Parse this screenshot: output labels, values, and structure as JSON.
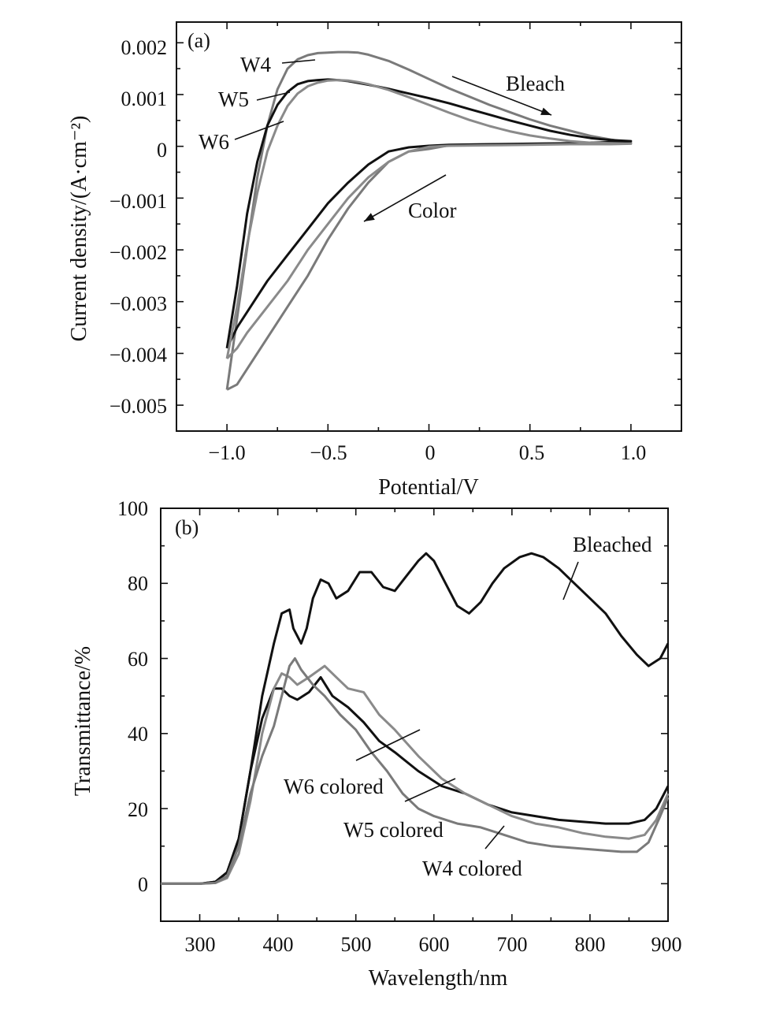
{
  "chart_data": [
    {
      "type": "line",
      "panel_label": "(a)",
      "xlabel": "Potential/V",
      "ylabel": "Current density/(A·cm⁻²)",
      "xlim": [
        -1.25,
        1.25
      ],
      "ylim": [
        -0.0055,
        0.0024
      ],
      "xticks": [
        -1.0,
        -0.5,
        0,
        0.5,
        1.0
      ],
      "xtick_labels": [
        "−1.0",
        "−0.5",
        "0",
        "0.5",
        "1.0"
      ],
      "yticks": [
        0.002,
        0.001,
        0,
        -0.001,
        -0.002,
        -0.003,
        -0.004,
        -0.005
      ],
      "ytick_labels": [
        "0.002",
        "0.001",
        "0",
        "−0.001",
        "−0.002",
        "−0.003",
        "−0.004",
        "−0.005"
      ],
      "series": [
        {
          "name": "W4",
          "color": "#7a7a7a",
          "x": [
            -1.0,
            -0.92,
            -0.85,
            -0.8,
            -0.75,
            -0.7,
            -0.65,
            -0.6,
            -0.55,
            -0.5,
            -0.45,
            -0.4,
            -0.35,
            -0.3,
            -0.2,
            -0.1,
            0.0,
            0.1,
            0.2,
            0.3,
            0.4,
            0.5,
            0.6,
            0.7,
            0.8,
            0.9,
            1.0,
            0.9,
            0.7,
            0.5,
            0.3,
            0.1,
            0.0,
            -0.1,
            -0.2,
            -0.3,
            -0.4,
            -0.5,
            -0.6,
            -0.7,
            -0.8,
            -0.9,
            -0.95,
            -1.0
          ],
          "y": [
            -0.0047,
            -0.0025,
            -0.0006,
            0.0004,
            0.0011,
            0.0015,
            0.00168,
            0.00176,
            0.0018,
            0.00181,
            0.00182,
            0.00182,
            0.00181,
            0.00177,
            0.00165,
            0.00148,
            0.0013,
            0.00112,
            0.00096,
            0.0008,
            0.00066,
            0.00052,
            0.0004,
            0.0003,
            0.0002,
            0.00013,
            7e-05,
            5e-05,
            4e-05,
            4e-05,
            3e-05,
            2e-05,
            -5e-05,
            -0.0001,
            -0.0003,
            -0.0007,
            -0.0012,
            -0.0018,
            -0.0025,
            -0.0031,
            -0.0037,
            -0.0043,
            -0.0046,
            -0.0047
          ]
        },
        {
          "name": "W5",
          "color": "#111111",
          "x": [
            -1.0,
            -0.95,
            -0.9,
            -0.85,
            -0.8,
            -0.75,
            -0.7,
            -0.65,
            -0.6,
            -0.55,
            -0.5,
            -0.45,
            -0.4,
            -0.3,
            -0.2,
            -0.1,
            0.0,
            0.1,
            0.2,
            0.3,
            0.4,
            0.5,
            0.6,
            0.7,
            0.8,
            0.9,
            1.0,
            0.9,
            0.7,
            0.5,
            0.3,
            0.1,
            0.0,
            -0.1,
            -0.2,
            -0.3,
            -0.4,
            -0.5,
            -0.6,
            -0.7,
            -0.8,
            -0.9,
            -0.95,
            -1.0
          ],
          "y": [
            -0.0039,
            -0.0027,
            -0.0013,
            -0.0003,
            0.0004,
            0.0008,
            0.00105,
            0.0012,
            0.00126,
            0.00128,
            0.00129,
            0.00128,
            0.00126,
            0.00119,
            0.00111,
            0.00102,
            0.00093,
            0.00083,
            0.00072,
            0.00061,
            0.0005,
            0.0004,
            0.0003,
            0.00022,
            0.00016,
            0.00012,
            0.0001,
            8e-05,
            6e-05,
            5e-05,
            4e-05,
            3e-05,
            1e-05,
            -2e-05,
            -0.0001,
            -0.00035,
            -0.0007,
            -0.0011,
            -0.0016,
            -0.0021,
            -0.0026,
            -0.0032,
            -0.0035,
            -0.0039
          ]
        },
        {
          "name": "W6",
          "color": "#8a8a8a",
          "x": [
            -1.0,
            -0.95,
            -0.9,
            -0.85,
            -0.8,
            -0.75,
            -0.7,
            -0.65,
            -0.6,
            -0.55,
            -0.5,
            -0.45,
            -0.4,
            -0.35,
            -0.3,
            -0.2,
            -0.1,
            0.0,
            0.1,
            0.2,
            0.3,
            0.4,
            0.5,
            0.6,
            0.7,
            0.8,
            0.9,
            1.0,
            0.9,
            0.7,
            0.5,
            0.3,
            0.1,
            0.0,
            -0.1,
            -0.2,
            -0.3,
            -0.4,
            -0.5,
            -0.6,
            -0.7,
            -0.8,
            -0.9,
            -0.95,
            -1.0
          ],
          "y": [
            -0.0041,
            -0.0031,
            -0.0019,
            -0.0009,
            -0.0001,
            0.0004,
            0.00078,
            0.00102,
            0.00116,
            0.00123,
            0.00127,
            0.00128,
            0.00127,
            0.00124,
            0.0012,
            0.00109,
            0.00095,
            0.0008,
            0.00065,
            0.00051,
            0.00039,
            0.00029,
            0.00021,
            0.00015,
            0.0001,
            7e-05,
            6e-05,
            5e-05,
            4e-05,
            4e-05,
            3e-05,
            2e-05,
            1e-05,
            -1e-05,
            -0.0001,
            -0.0003,
            -0.0006,
            -0.001,
            -0.0015,
            -0.002,
            -0.0026,
            -0.0031,
            -0.0036,
            -0.0039,
            -0.0041
          ]
        }
      ],
      "annotations": [
        {
          "text": "W4"
        },
        {
          "text": "W5"
        },
        {
          "text": "W6"
        },
        {
          "text": "Bleach"
        },
        {
          "text": "Color"
        }
      ]
    },
    {
      "type": "line",
      "panel_label": "(b)",
      "xlabel": "Wavelength/nm",
      "ylabel": "Transmittance/%",
      "xlim": [
        250,
        900
      ],
      "ylim": [
        -10,
        100
      ],
      "xticks": [
        300,
        400,
        500,
        600,
        700,
        800,
        900
      ],
      "xtick_labels": [
        "300",
        "400",
        "500",
        "600",
        "700",
        "800",
        "900"
      ],
      "yticks": [
        0,
        20,
        40,
        60,
        80,
        100
      ],
      "ytick_labels": [
        "0",
        "20",
        "40",
        "60",
        "80",
        "100"
      ],
      "series": [
        {
          "name": "Bleached",
          "color": "#111111",
          "x": [
            250,
            300,
            320,
            335,
            350,
            365,
            380,
            395,
            405,
            415,
            420,
            430,
            437,
            445,
            455,
            465,
            475,
            490,
            505,
            520,
            535,
            550,
            565,
            580,
            590,
            600,
            615,
            630,
            645,
            660,
            675,
            690,
            710,
            725,
            740,
            760,
            780,
            800,
            820,
            840,
            860,
            875,
            890,
            900
          ],
          "y": [
            0,
            0,
            0.5,
            3,
            12,
            30,
            50,
            64,
            72,
            73,
            68,
            64,
            68,
            76,
            81,
            80,
            76,
            78,
            83,
            83,
            79,
            78,
            82,
            86,
            88,
            86,
            80,
            74,
            72,
            75,
            80,
            84,
            87,
            88,
            87,
            84,
            80,
            76,
            72,
            66,
            61,
            58,
            60,
            64
          ]
        },
        {
          "name": "W6 colored",
          "color": "#111111",
          "x": [
            250,
            300,
            320,
            335,
            350,
            365,
            380,
            395,
            405,
            415,
            425,
            440,
            455,
            470,
            490,
            510,
            530,
            550,
            580,
            610,
            640,
            670,
            700,
            730,
            760,
            790,
            820,
            850,
            870,
            885,
            900
          ],
          "y": [
            0,
            0,
            0.5,
            3,
            12,
            30,
            44,
            52,
            52,
            50,
            49,
            51,
            55,
            50,
            47,
            43,
            38,
            35,
            30,
            26,
            24,
            21,
            19,
            18,
            17,
            16.5,
            16,
            16,
            17,
            20,
            26
          ]
        },
        {
          "name": "W5 colored",
          "color": "#8a8a8a",
          "x": [
            250,
            300,
            320,
            335,
            350,
            365,
            380,
            395,
            405,
            415,
            425,
            440,
            460,
            475,
            490,
            510,
            530,
            550,
            580,
            610,
            640,
            670,
            700,
            730,
            760,
            790,
            820,
            850,
            870,
            885,
            900
          ],
          "y": [
            0,
            0,
            0.2,
            1.5,
            8,
            22,
            40,
            52,
            56,
            55,
            53,
            55,
            58,
            55,
            52,
            51,
            45,
            41,
            34,
            28,
            24,
            21,
            18,
            16,
            15,
            13.5,
            12.5,
            12,
            13,
            17,
            24
          ]
        },
        {
          "name": "W4 colored",
          "color": "#7a7a7a",
          "x": [
            250,
            300,
            320,
            335,
            350,
            365,
            380,
            395,
            405,
            415,
            422,
            430,
            445,
            460,
            480,
            500,
            520,
            540,
            560,
            580,
            600,
            630,
            660,
            690,
            720,
            750,
            780,
            810,
            840,
            860,
            875,
            890,
            900
          ],
          "y": [
            0,
            0,
            0.2,
            2,
            10,
            24,
            34,
            42,
            50,
            58,
            60,
            57,
            53,
            50,
            45,
            41,
            35,
            30,
            24,
            20,
            18,
            16,
            15,
            13,
            11,
            10,
            9.5,
            9,
            8.5,
            8.5,
            11,
            18,
            23
          ]
        }
      ],
      "annotations": [
        {
          "text": "Bleached"
        },
        {
          "text": "W6 colored"
        },
        {
          "text": "W5 colored"
        },
        {
          "text": "W4 colored"
        }
      ]
    }
  ]
}
